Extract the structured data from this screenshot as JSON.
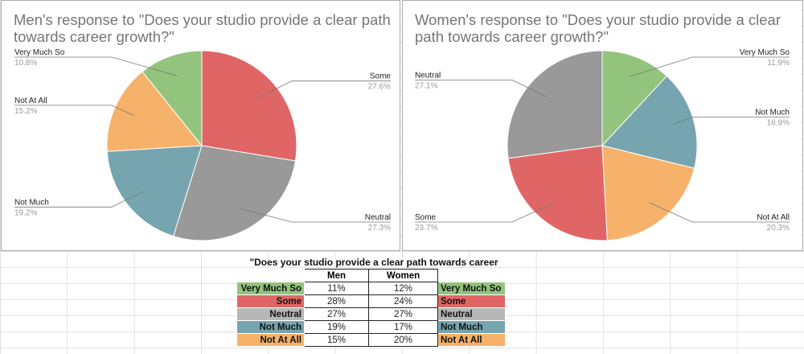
{
  "chart_data": [
    {
      "type": "pie",
      "title": "Men's response to \"Does your studio provide a clear path towards career growth?\"",
      "slices": [
        {
          "label": "Some",
          "value": 27.6,
          "pct": "27.6%",
          "color": "#e06666"
        },
        {
          "label": "Neutral",
          "value": 27.3,
          "pct": "27.3%",
          "color": "#999999"
        },
        {
          "label": "Not Much",
          "value": 19.2,
          "pct": "19.2%",
          "color": "#76a5af"
        },
        {
          "label": "Not At All",
          "value": 15.2,
          "pct": "15.2%",
          "color": "#f6b26b"
        },
        {
          "label": "Very Much So",
          "value": 10.8,
          "pct": "10.8%",
          "color": "#93c47d"
        }
      ]
    },
    {
      "type": "pie",
      "title": "Women's response to \"Does your studio provide a clear path towards career growth?\"",
      "slices": [
        {
          "label": "Very Much So",
          "value": 11.9,
          "pct": "11.9%",
          "color": "#93c47d"
        },
        {
          "label": "Not Much",
          "value": 16.9,
          "pct": "16.9%",
          "color": "#76a5af"
        },
        {
          "label": "Not At All",
          "value": 20.3,
          "pct": "20.3%",
          "color": "#f6b26b"
        },
        {
          "label": "Some",
          "value": 23.7,
          "pct": "23.7%",
          "color": "#e06666"
        },
        {
          "label": "Neutral",
          "value": 27.1,
          "pct": "27.1%",
          "color": "#999999"
        }
      ]
    }
  ],
  "table": {
    "title": "\"Does your studio provide a clear path towards career growth\"",
    "headers": [
      "Men",
      "Women"
    ],
    "rows": [
      {
        "label": "Very Much So",
        "men": "11%",
        "women": "12%",
        "color": "#93c47d"
      },
      {
        "label": "Some",
        "men": "28%",
        "women": "24%",
        "color": "#e06666"
      },
      {
        "label": "Neutral",
        "men": "27%",
        "women": "27%",
        "color": "#b7b7b7"
      },
      {
        "label": "Not Much",
        "men": "19%",
        "women": "17%",
        "color": "#76a5af"
      },
      {
        "label": "Not At All",
        "men": "15%",
        "women": "20%",
        "color": "#f6b26b"
      }
    ]
  }
}
